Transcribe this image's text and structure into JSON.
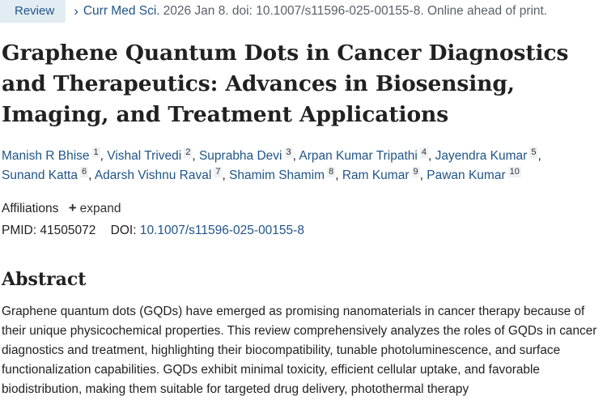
{
  "header": {
    "badge": "Review",
    "journal": "Curr Med Sci.",
    "citation_rest": "2026 Jan 8. doi: 10.1007/s11596-025-00155-8. Online ahead of print."
  },
  "title": "Graphene Quantum Dots in Cancer Diagnostics and Therapeutics: Advances in Biosensing, Imaging, and Treatment Applications",
  "authors": [
    {
      "name": "Manish R Bhise",
      "aff": "1"
    },
    {
      "name": "Vishal Trivedi",
      "aff": "2"
    },
    {
      "name": "Suprabha Devi",
      "aff": "3"
    },
    {
      "name": "Arpan Kumar Tripathi",
      "aff": "4"
    },
    {
      "name": "Jayendra Kumar",
      "aff": "5"
    },
    {
      "name": "Sunand Katta",
      "aff": "6"
    },
    {
      "name": "Adarsh Vishnu Raval",
      "aff": "7"
    },
    {
      "name": "Shamim Shamim",
      "aff": "8"
    },
    {
      "name": "Ram Kumar",
      "aff": "9"
    },
    {
      "name": "Pawan Kumar",
      "aff": "10"
    }
  ],
  "affiliations": {
    "label": "Affiliations",
    "expand_label": "expand"
  },
  "ids": {
    "pmid_label": "PMID:",
    "pmid": "41505072",
    "doi_label": "DOI:",
    "doi": "10.1007/s11596-025-00155-8"
  },
  "abstract": {
    "heading": "Abstract",
    "text": "Graphene quantum dots (GQDs) have emerged as promising nanomaterials in cancer therapy because of their unique physicochemical properties. This review comprehensively analyzes the roles of GQDs in cancer diagnostics and treatment, highlighting their biocompatibility, tunable photoluminescence, and surface functionalization capabilities. GQDs exhibit minimal toxicity, efficient cellular uptake, and favorable biodistribution, making them suitable for targeted drug delivery, photothermal therapy"
  },
  "colors": {
    "link": "#20558a",
    "badge_bg": "#e2ecf3",
    "text": "#212121"
  },
  "icons": {
    "chevron": "chevron-right-icon",
    "expand": "plus-icon"
  }
}
